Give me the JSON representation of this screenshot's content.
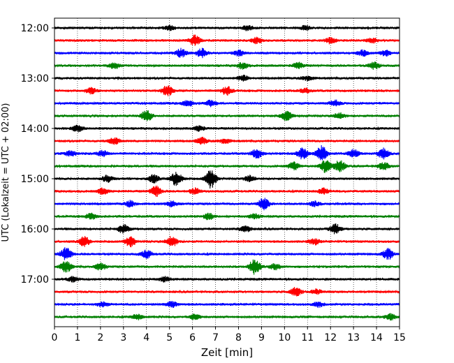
{
  "chart_data": {
    "type": "line",
    "title": "",
    "xlabel": "Zeit  [min]",
    "ylabel": "UTC (Lokalzeit = UTC + 02:00)",
    "xlim": [
      0,
      15
    ],
    "x_ticks": [
      "0",
      "1",
      "2",
      "3",
      "4",
      "5",
      "6",
      "7",
      "8",
      "9",
      "10",
      "11",
      "12",
      "13",
      "14",
      "15"
    ],
    "y_ticks": [
      "12:00",
      "13:00",
      "14:00",
      "15:00",
      "16:00",
      "17:00"
    ],
    "grid": "vertical dotted",
    "colors": [
      "#000000",
      "#ff0000",
      "#0000ff",
      "#008000"
    ],
    "series": [
      {
        "start": "12:00",
        "color": "#000000",
        "bursts": [
          [
            5.0,
            0.25
          ],
          [
            8.4,
            0.25
          ],
          [
            10.9,
            0.2
          ]
        ]
      },
      {
        "start": "12:15",
        "color": "#ff0000",
        "bursts": [
          [
            6.1,
            0.55
          ],
          [
            8.8,
            0.3
          ],
          [
            12.0,
            0.3
          ],
          [
            13.8,
            0.25
          ]
        ]
      },
      {
        "start": "12:30",
        "color": "#0000ff",
        "bursts": [
          [
            5.5,
            0.45
          ],
          [
            6.4,
            0.45
          ],
          [
            8.0,
            0.3
          ],
          [
            13.4,
            0.3
          ],
          [
            14.4,
            0.3
          ]
        ]
      },
      {
        "start": "12:45",
        "color": "#008000",
        "bursts": [
          [
            2.6,
            0.3
          ],
          [
            8.2,
            0.35
          ],
          [
            10.6,
            0.3
          ],
          [
            13.9,
            0.35
          ]
        ]
      },
      {
        "start": "13:00",
        "color": "#000000",
        "bursts": [
          [
            8.2,
            0.3
          ],
          [
            11.0,
            0.25
          ]
        ]
      },
      {
        "start": "13:15",
        "color": "#ff0000",
        "bursts": [
          [
            1.6,
            0.3
          ],
          [
            4.9,
            0.55
          ],
          [
            7.5,
            0.45
          ],
          [
            10.9,
            0.25
          ]
        ]
      },
      {
        "start": "13:30",
        "color": "#0000ff",
        "bursts": [
          [
            5.8,
            0.3
          ],
          [
            6.8,
            0.3
          ],
          [
            12.2,
            0.3
          ]
        ]
      },
      {
        "start": "13:45",
        "color": "#008000",
        "bursts": [
          [
            4.0,
            0.6
          ],
          [
            10.1,
            0.5
          ],
          [
            12.4,
            0.3
          ]
        ]
      },
      {
        "start": "14:00",
        "color": "#000000",
        "bursts": [
          [
            1.0,
            0.35
          ],
          [
            6.3,
            0.25
          ]
        ]
      },
      {
        "start": "14:15",
        "color": "#ff0000",
        "bursts": [
          [
            2.6,
            0.35
          ],
          [
            6.4,
            0.35
          ],
          [
            7.4,
            0.25
          ]
        ]
      },
      {
        "start": "14:30",
        "color": "#0000ff",
        "bursts": [
          [
            0.7,
            0.3
          ],
          [
            2.1,
            0.3
          ],
          [
            8.8,
            0.5
          ],
          [
            10.8,
            0.6
          ],
          [
            11.6,
            0.85
          ],
          [
            13.0,
            0.4
          ],
          [
            14.3,
            0.55
          ]
        ]
      },
      {
        "start": "14:45",
        "color": "#008000",
        "bursts": [
          [
            10.4,
            0.4
          ],
          [
            11.8,
            0.65
          ],
          [
            12.4,
            0.6
          ],
          [
            14.3,
            0.4
          ]
        ]
      },
      {
        "start": "15:00",
        "color": "#000000",
        "bursts": [
          [
            2.3,
            0.35
          ],
          [
            4.3,
            0.4
          ],
          [
            5.3,
            0.75
          ],
          [
            6.8,
            1.0
          ],
          [
            8.5,
            0.3
          ]
        ]
      },
      {
        "start": "15:15",
        "color": "#ff0000",
        "bursts": [
          [
            2.1,
            0.3
          ],
          [
            4.4,
            0.55
          ],
          [
            6.1,
            0.3
          ],
          [
            11.7,
            0.3
          ]
        ]
      },
      {
        "start": "15:30",
        "color": "#0000ff",
        "bursts": [
          [
            3.3,
            0.3
          ],
          [
            5.1,
            0.3
          ],
          [
            9.1,
            0.6
          ],
          [
            11.3,
            0.25
          ]
        ]
      },
      {
        "start": "15:45",
        "color": "#008000",
        "bursts": [
          [
            1.6,
            0.3
          ],
          [
            6.7,
            0.3
          ],
          [
            8.7,
            0.25
          ]
        ]
      },
      {
        "start": "16:00",
        "color": "#000000",
        "bursts": [
          [
            3.0,
            0.45
          ],
          [
            8.3,
            0.3
          ],
          [
            12.2,
            0.55
          ]
        ]
      },
      {
        "start": "16:15",
        "color": "#ff0000",
        "bursts": [
          [
            1.3,
            0.5
          ],
          [
            3.3,
            0.55
          ],
          [
            5.1,
            0.55
          ],
          [
            11.3,
            0.3
          ]
        ]
      },
      {
        "start": "16:30",
        "color": "#0000ff",
        "bursts": [
          [
            0.5,
            0.7
          ],
          [
            4.0,
            0.4
          ],
          [
            14.5,
            0.55
          ]
        ]
      },
      {
        "start": "16:45",
        "color": "#008000",
        "bursts": [
          [
            0.5,
            0.6
          ],
          [
            2.0,
            0.35
          ],
          [
            8.7,
            0.8
          ],
          [
            9.6,
            0.3
          ]
        ]
      },
      {
        "start": "17:00",
        "color": "#000000",
        "bursts": [
          [
            0.8,
            0.25
          ],
          [
            4.8,
            0.25
          ]
        ]
      },
      {
        "start": "17:15",
        "color": "#ff0000",
        "bursts": [
          [
            10.5,
            0.45
          ],
          [
            11.4,
            0.25
          ]
        ]
      },
      {
        "start": "17:30",
        "color": "#0000ff",
        "bursts": [
          [
            2.1,
            0.25
          ],
          [
            5.1,
            0.3
          ],
          [
            11.5,
            0.25
          ]
        ]
      },
      {
        "start": "17:45",
        "color": "#008000",
        "bursts": [
          [
            3.6,
            0.25
          ],
          [
            6.1,
            0.25
          ],
          [
            14.6,
            0.3
          ]
        ]
      }
    ]
  }
}
